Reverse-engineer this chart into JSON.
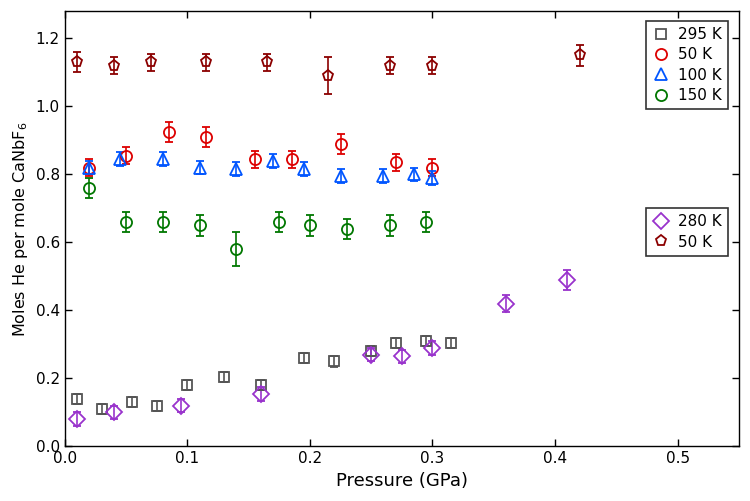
{
  "series": {
    "295K": {
      "edgecolor": "#555555",
      "marker": "s",
      "label": "295 K",
      "x": [
        0.01,
        0.03,
        0.055,
        0.075,
        0.1,
        0.13,
        0.16,
        0.195,
        0.22,
        0.25,
        0.27,
        0.295,
        0.315
      ],
      "y": [
        0.14,
        0.11,
        0.13,
        0.12,
        0.18,
        0.205,
        0.18,
        0.26,
        0.25,
        0.28,
        0.305,
        0.31,
        0.305
      ],
      "yerr": [
        0.015,
        0.015,
        0.015,
        0.015,
        0.015,
        0.015,
        0.015,
        0.015,
        0.015,
        0.015,
        0.015,
        0.015,
        0.015
      ]
    },
    "50K_red": {
      "edgecolor": "#dd0000",
      "marker": "o",
      "label": "50 K",
      "x": [
        0.02,
        0.05,
        0.085,
        0.115,
        0.155,
        0.185,
        0.225,
        0.27,
        0.3
      ],
      "y": [
        0.82,
        0.855,
        0.925,
        0.91,
        0.845,
        0.845,
        0.89,
        0.835,
        0.82
      ],
      "yerr": [
        0.025,
        0.025,
        0.03,
        0.03,
        0.025,
        0.025,
        0.03,
        0.025,
        0.025
      ]
    },
    "100K": {
      "edgecolor": "#0055ff",
      "marker": "^",
      "label": "100 K",
      "x": [
        0.02,
        0.045,
        0.08,
        0.11,
        0.14,
        0.17,
        0.195,
        0.225,
        0.26,
        0.285,
        0.3
      ],
      "y": [
        0.82,
        0.845,
        0.845,
        0.82,
        0.815,
        0.84,
        0.815,
        0.795,
        0.795,
        0.8,
        0.79
      ],
      "yerr": [
        0.02,
        0.02,
        0.02,
        0.02,
        0.02,
        0.02,
        0.02,
        0.02,
        0.02,
        0.02,
        0.02
      ]
    },
    "150K": {
      "edgecolor": "#007700",
      "marker": "o",
      "label": "150 K",
      "x": [
        0.02,
        0.05,
        0.08,
        0.11,
        0.14,
        0.175,
        0.2,
        0.23,
        0.265,
        0.295
      ],
      "y": [
        0.76,
        0.66,
        0.66,
        0.65,
        0.58,
        0.66,
        0.65,
        0.64,
        0.65,
        0.66
      ],
      "yerr": [
        0.03,
        0.03,
        0.03,
        0.03,
        0.05,
        0.03,
        0.03,
        0.03,
        0.03,
        0.03
      ]
    },
    "280K": {
      "edgecolor": "#9933cc",
      "marker": "D",
      "label": "280 K",
      "x": [
        0.01,
        0.04,
        0.095,
        0.16,
        0.25,
        0.275,
        0.3,
        0.36,
        0.41
      ],
      "y": [
        0.08,
        0.1,
        0.12,
        0.155,
        0.27,
        0.265,
        0.29,
        0.42,
        0.49
      ],
      "yerr": [
        0.02,
        0.02,
        0.02,
        0.02,
        0.02,
        0.02,
        0.02,
        0.025,
        0.03
      ]
    },
    "50K_dark": {
      "edgecolor": "#8b0000",
      "marker": "p",
      "label": "50 K",
      "x": [
        0.01,
        0.04,
        0.07,
        0.115,
        0.165,
        0.215,
        0.265,
        0.3,
        0.42
      ],
      "y": [
        1.13,
        1.12,
        1.13,
        1.13,
        1.13,
        1.09,
        1.12,
        1.12,
        1.15
      ],
      "yerr": [
        0.03,
        0.025,
        0.025,
        0.025,
        0.025,
        0.055,
        0.025,
        0.025,
        0.03
      ]
    }
  },
  "xlim": [
    0.0,
    0.55
  ],
  "ylim": [
    0.0,
    1.28
  ],
  "xlabel": "Pressure (GPa)",
  "ylabel": "Moles He per mole CaNbF$_6$",
  "xticks": [
    0.0,
    0.1,
    0.2,
    0.3,
    0.4,
    0.5
  ],
  "yticks": [
    0.0,
    0.2,
    0.4,
    0.6,
    0.8,
    1.0,
    1.2
  ],
  "figsize": [
    7.5,
    5.01
  ],
  "dpi": 100,
  "markersize": 7,
  "elinewidth": 1.2,
  "capsize": 3,
  "capthick": 1.2,
  "markeredgewidth": 1.3
}
